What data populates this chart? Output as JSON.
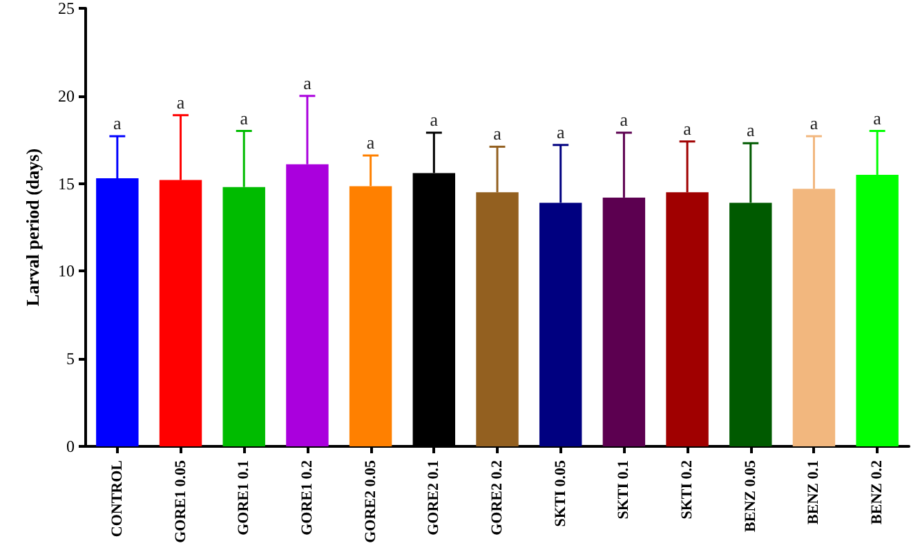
{
  "chart_data": {
    "type": "bar",
    "ylabel": "Larval period (days)",
    "categories": [
      "CONTROL",
      "GORE1 0.05",
      "GORE1 0.1",
      "GORE1 0.2",
      "GORE2 0.05",
      "GORE2 0.1",
      "GORE2 0.2",
      "SKTI 0.05",
      "SKTI 0.1",
      "SKTI 0.2",
      "BENZ 0.05",
      "BENZ 0.1",
      "BENZ 0.2"
    ],
    "values": [
      15.3,
      15.2,
      14.8,
      16.1,
      14.85,
      15.6,
      14.5,
      13.9,
      14.2,
      14.5,
      13.9,
      14.7,
      15.5
    ],
    "errors": [
      [
        15.3,
        17.7
      ],
      [
        15.2,
        18.9
      ],
      [
        14.8,
        18.0
      ],
      [
        16.1,
        20.0
      ],
      [
        14.85,
        16.6
      ],
      [
        15.6,
        17.9
      ],
      [
        14.5,
        17.1
      ],
      [
        13.9,
        17.2
      ],
      [
        14.2,
        17.9
      ],
      [
        14.5,
        17.4
      ],
      [
        13.9,
        17.3
      ],
      [
        14.7,
        17.7
      ],
      [
        15.5,
        18.0
      ]
    ],
    "colors": [
      "#0000ff",
      "#ff0000",
      "#00bb00",
      "#aa00dd",
      "#ff8000",
      "#000000",
      "#936020",
      "#000080",
      "#5c0050",
      "#a00000",
      "#005a00",
      "#f2b77e",
      "#00ff00"
    ],
    "ylim": [
      0,
      25
    ],
    "yticks": [
      0,
      5,
      10,
      15,
      20,
      25
    ],
    "grid": false,
    "annotations": [
      "a",
      "a",
      "a",
      "a",
      "a",
      "a",
      "a",
      "a",
      "a",
      "a",
      "a",
      "a",
      "a"
    ]
  }
}
